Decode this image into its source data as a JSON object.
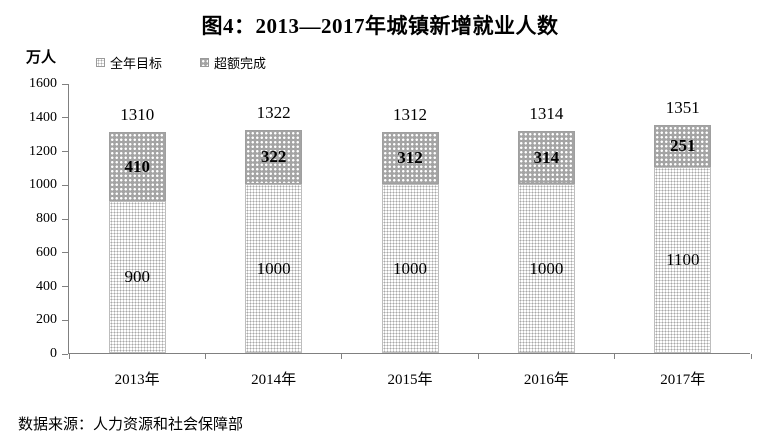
{
  "title": "图4：2013—2017年城镇新增就业人数",
  "y_axis_unit": "万人",
  "legend": [
    {
      "label": "全年目标",
      "pattern": "light-dotted"
    },
    {
      "label": "超额完成",
      "pattern": "dark-dotted"
    }
  ],
  "source": "数据来源：人力资源和社会保障部",
  "colors": {
    "axis": "#808080",
    "text": "#000000",
    "light_segment_bg": "#ffffff",
    "light_segment_dot": "#a8a8a8",
    "dark_segment_bg": "#a4a4a4",
    "dark_segment_dot": "#ffffff",
    "bar_border": "#bdbdbd"
  },
  "chart_data": {
    "type": "bar",
    "stacked": true,
    "title": "图4：2013—2017年城镇新增就业人数",
    "ylabel": "万人",
    "xlabel": "",
    "categories": [
      "2013年",
      "2014年",
      "2015年",
      "2016年",
      "2017年"
    ],
    "series": [
      {
        "name": "全年目标",
        "values": [
          900,
          1000,
          1000,
          1000,
          1100
        ]
      },
      {
        "name": "超额完成",
        "values": [
          410,
          322,
          312,
          314,
          251
        ]
      }
    ],
    "totals": [
      1310,
      1322,
      1312,
      1314,
      1351
    ],
    "ylim": [
      0,
      1600
    ],
    "ytick_step": 200,
    "grid": false,
    "legend_position": "top-left"
  }
}
